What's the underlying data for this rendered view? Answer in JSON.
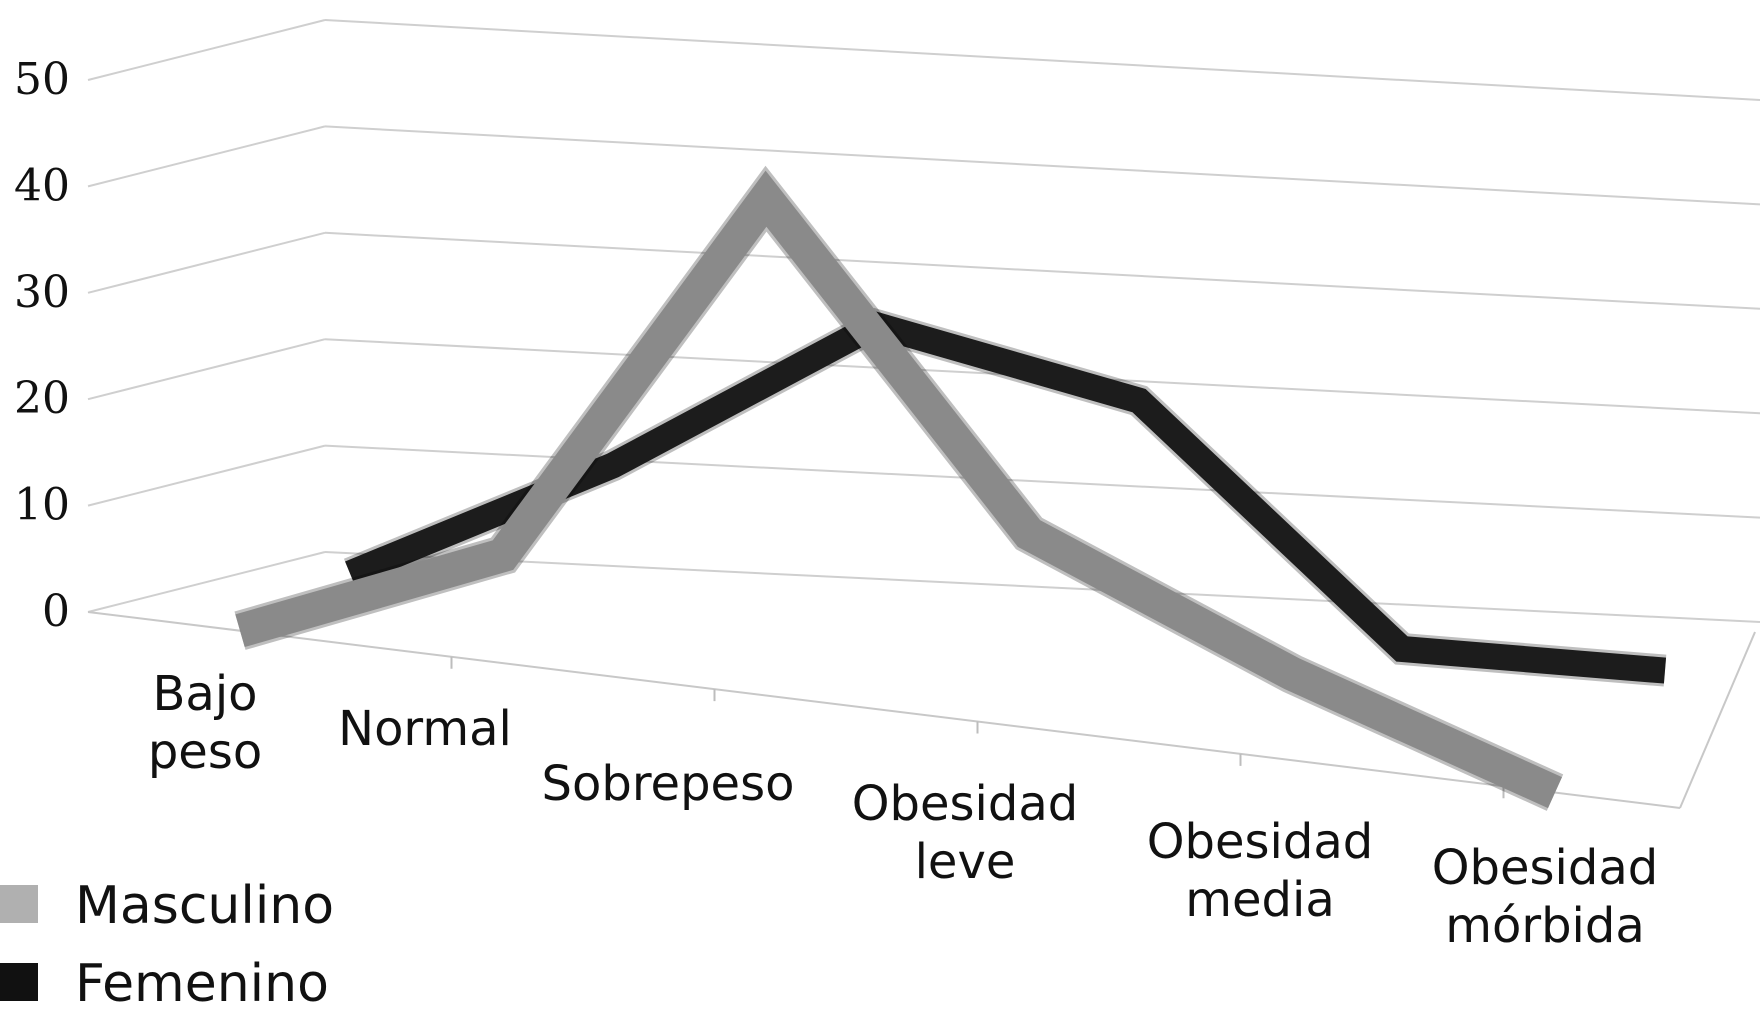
{
  "chart_data": {
    "type": "line",
    "title": "",
    "xlabel": "",
    "ylabel": "",
    "ylim": [
      0,
      50
    ],
    "yticks": [
      "0",
      "10",
      "20",
      "30",
      "40",
      "50"
    ],
    "categories": [
      [
        "Bajo",
        "peso"
      ],
      [
        "Normal"
      ],
      [
        "Sobrepeso"
      ],
      [
        "Obesidad",
        "leve"
      ],
      [
        "Obesidad",
        "media"
      ],
      [
        "Obesidad",
        "mórbida"
      ]
    ],
    "series": [
      {
        "name": "Masculino",
        "color": "#8a8a8a",
        "legend_color": "#b0b0b0",
        "values": [
          0,
          10,
          46,
          18,
          8,
          0
        ]
      },
      {
        "name": "Femenino",
        "color": "#1c1c1c",
        "legend_color": "#111111",
        "values": [
          1,
          14,
          30,
          26,
          6,
          7
        ]
      }
    ],
    "grid": true,
    "legend": "bottom-left"
  }
}
